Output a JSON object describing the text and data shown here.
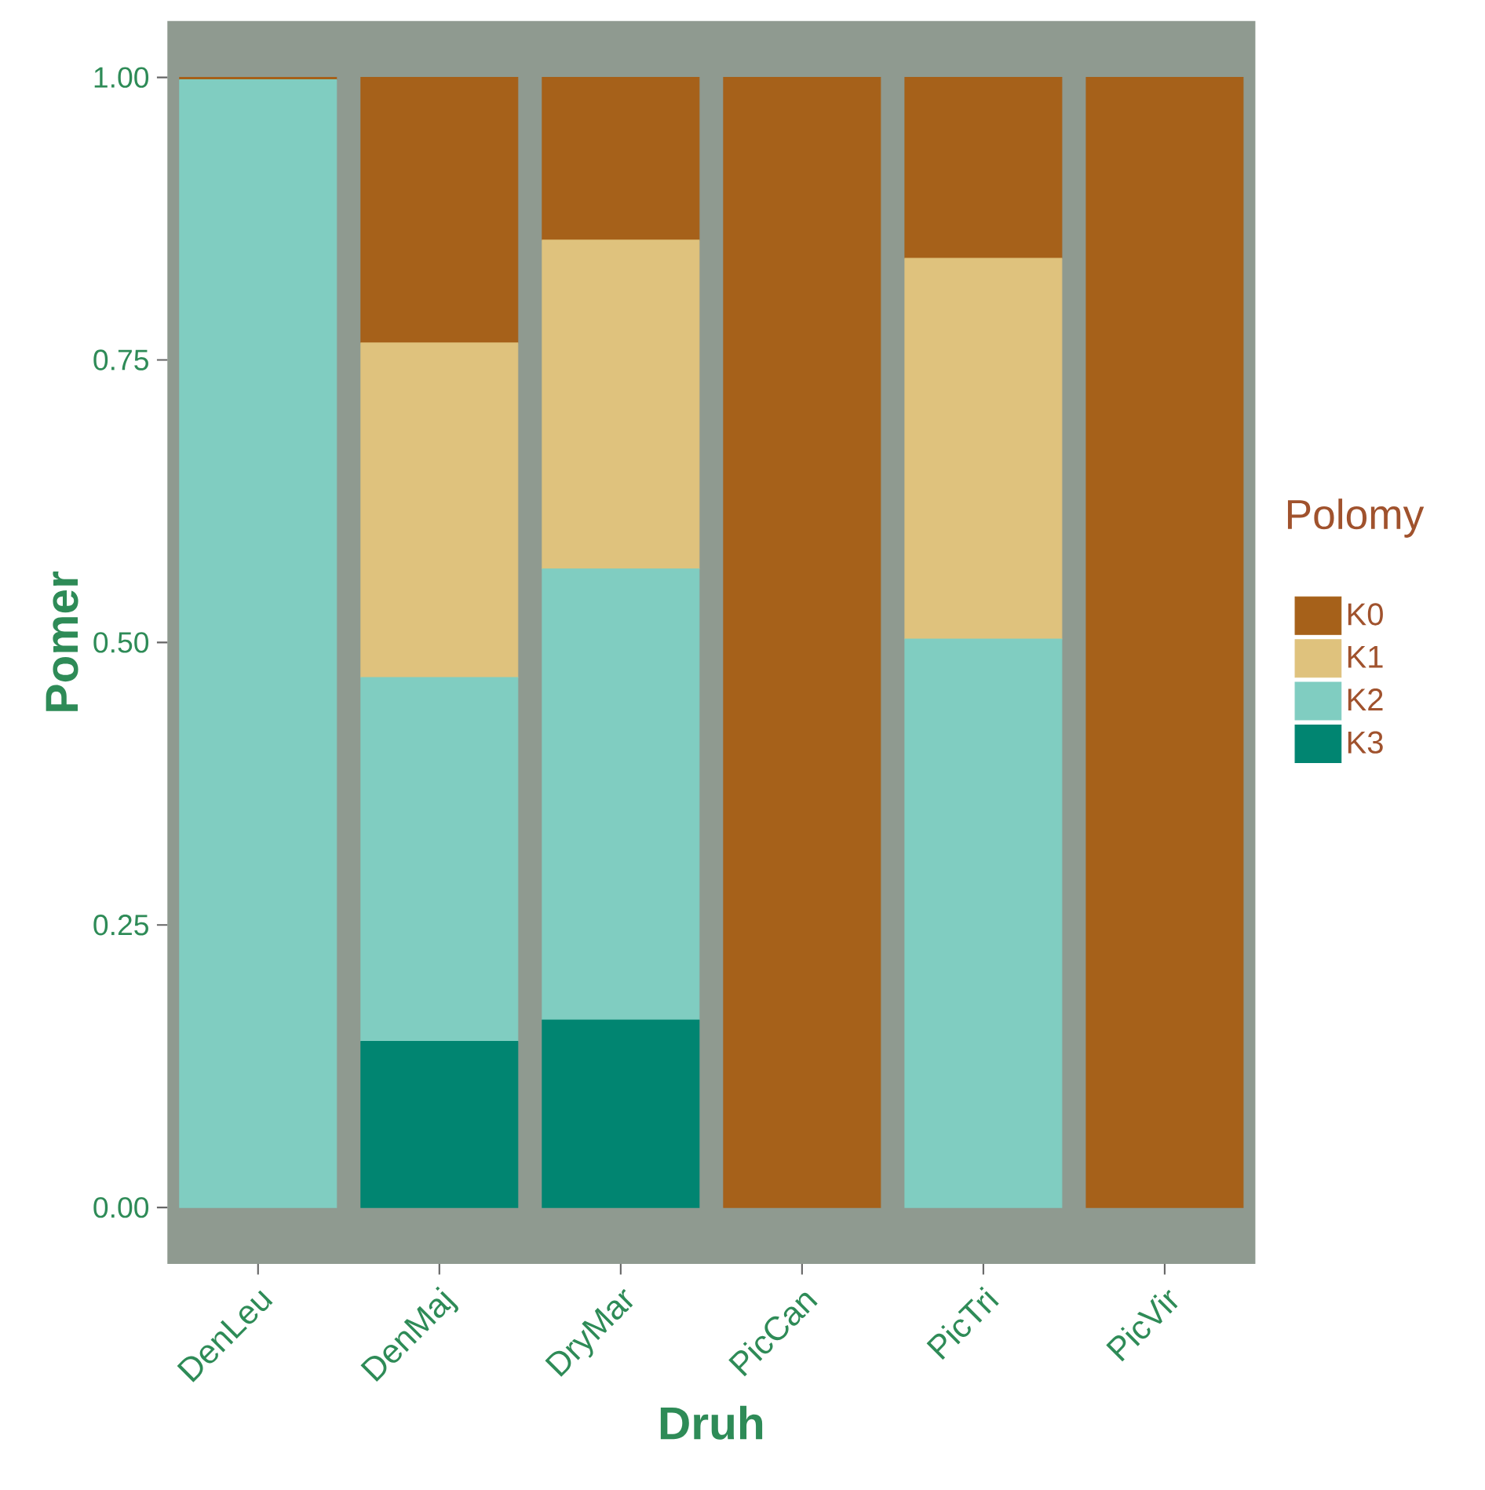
{
  "chart_data": {
    "type": "bar",
    "stacked": true,
    "xlabel": "Druh",
    "ylabel": "Pomer",
    "legend_title": "Polomy",
    "legend": "right",
    "grid": false,
    "categories": [
      "DenLeu",
      "DenMaj",
      "DryMar",
      "PicCan",
      "PicTri",
      "PicVir"
    ],
    "ylim": [
      -0.05,
      1.05
    ],
    "yticks": [
      {
        "value": 0,
        "label": "0.00"
      },
      {
        "value": 0.25,
        "label": "0.25"
      },
      {
        "value": 0.5,
        "label": "0.50"
      },
      {
        "value": 0.75,
        "label": "0.75"
      },
      {
        "value": 1,
        "label": "1.00"
      }
    ],
    "series": [
      {
        "name": "K3",
        "color": "#018571",
        "values": [
          0,
          0.147,
          0.166,
          0,
          0,
          0
        ]
      },
      {
        "name": "K2",
        "color": "#80cdc1",
        "values": [
          0.998,
          0.322,
          0.399,
          0,
          0.503,
          0
        ]
      },
      {
        "name": "K1",
        "color": "#dfc27d",
        "values": [
          0,
          0.296,
          0.291,
          0,
          0.337,
          0
        ]
      },
      {
        "name": "K0",
        "color": "#a6611a",
        "values": [
          0.002,
          0.235,
          0.144,
          1,
          0.16,
          1
        ]
      }
    ]
  }
}
